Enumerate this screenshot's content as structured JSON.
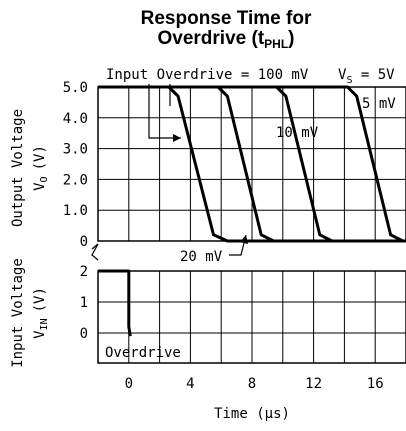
{
  "chart_data": {
    "type": "line",
    "title_line1": "Response Time for",
    "title_line2_prefix": "Overdrive (t",
    "title_line2_sub": "PHL",
    "title_line2_suffix": ")",
    "xlabel": "Time  (μs)",
    "xlim": [
      -2,
      18
    ],
    "x_ticks": [
      0,
      4,
      8,
      12,
      16
    ],
    "top_panel": {
      "ylabel_line1": "Output Voltage",
      "ylabel_line2": "V",
      "ylabel_sub": "O",
      "ylabel_unit": "(V)",
      "ylim": [
        0,
        5
      ],
      "y_ticks": [
        "0",
        "1.0",
        "2.0",
        "3.0",
        "4.0",
        "5.0"
      ]
    },
    "bottom_panel": {
      "ylabel_line1": "Input Voltage",
      "ylabel_line2": "V",
      "ylabel_sub": "IN",
      "ylabel_unit": "(V)",
      "ylim": [
        0,
        2
      ],
      "y_ticks": [
        "0",
        "1",
        "2"
      ]
    },
    "annotations": {
      "input_overdrive": "Input Overdrive = 100 mV",
      "vs_prefix": "V",
      "vs_sub": "S",
      "vs_suffix": " = 5V",
      "mv5": "5 mV",
      "mv10": "10 mV",
      "mv20": "20 mV",
      "overdrive": "Overdrive"
    },
    "series": [
      {
        "name": "100 mV",
        "x": [
          -2,
          2.6,
          3.2,
          5.5,
          6.4,
          18
        ],
        "y": [
          5,
          5,
          4.7,
          0.2,
          0,
          0
        ]
      },
      {
        "name": "20 mV",
        "x": [
          -2,
          5.8,
          6.4,
          8.6,
          9.4,
          18
        ],
        "y": [
          5,
          5,
          4.7,
          0.2,
          0,
          0
        ]
      },
      {
        "name": "10 mV",
        "x": [
          -2,
          9.6,
          10.2,
          12.4,
          13.2,
          18
        ],
        "y": [
          5,
          5,
          4.7,
          0.2,
          0,
          0
        ]
      },
      {
        "name": "5 mV",
        "x": [
          -2,
          14.2,
          14.8,
          17.0,
          17.8,
          18
        ],
        "y": [
          5,
          5,
          4.7,
          0.2,
          0,
          0
        ]
      }
    ],
    "input_signal": {
      "x": [
        -2,
        0,
        0,
        0.1
      ],
      "y": [
        2,
        2,
        0.2,
        -0.1
      ]
    }
  }
}
